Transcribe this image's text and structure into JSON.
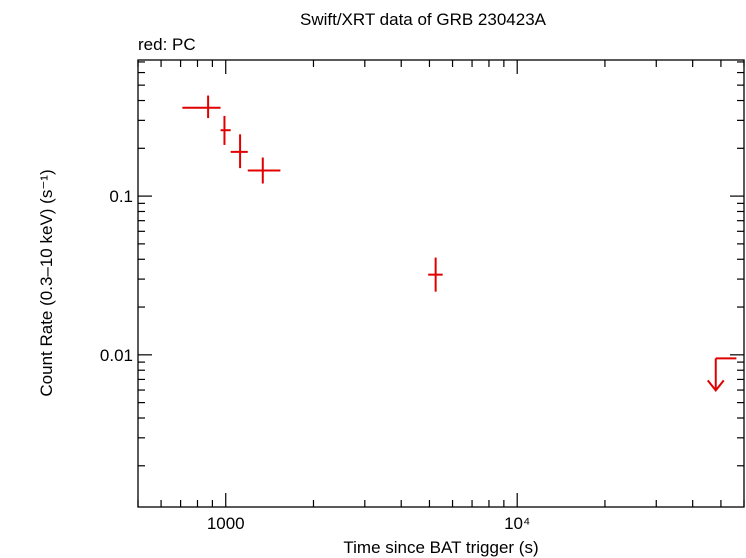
{
  "chart_data": {
    "type": "scatter",
    "title": "Swift/XRT data of GRB 230423A",
    "legend_label": "red: PC",
    "xlabel": "Time since BAT trigger (s)",
    "ylabel": "Count Rate (0.3–10 keV) (s⁻¹)",
    "xscale": "log",
    "yscale": "log",
    "xlim": [
      500,
      60000
    ],
    "ylim": [
      0.0011,
      0.72
    ],
    "x_ticks": [
      {
        "value": 1000,
        "label": "1000"
      },
      {
        "value": 10000,
        "label": "10⁴"
      }
    ],
    "y_ticks": [
      {
        "value": 0.1,
        "label": "0.1"
      },
      {
        "value": 0.01,
        "label": "0.01"
      }
    ],
    "series": [
      {
        "name": "PC",
        "color": "#e00000",
        "points": [
          {
            "x": 870,
            "xerr": [
              710,
              960
            ],
            "y": 0.36,
            "yerr": [
              0.31,
              0.43
            ]
          },
          {
            "x": 990,
            "xerr": [
              960,
              1040
            ],
            "y": 0.26,
            "yerr": [
              0.21,
              0.32
            ]
          },
          {
            "x": 1120,
            "xerr": [
              1040,
              1190
            ],
            "y": 0.19,
            "yerr": [
              0.15,
              0.245
            ]
          },
          {
            "x": 1340,
            "xerr": [
              1190,
              1540
            ],
            "y": 0.145,
            "yerr": [
              0.12,
              0.175
            ]
          },
          {
            "x": 5250,
            "xerr": [
              4950,
              5550
            ],
            "y": 0.032,
            "yerr": [
              0.025,
              0.041
            ]
          }
        ],
        "upper_limits": [
          {
            "x": 50000,
            "xerr": [
              48000,
              56500
            ],
            "y": 0.0095
          }
        ]
      }
    ]
  }
}
